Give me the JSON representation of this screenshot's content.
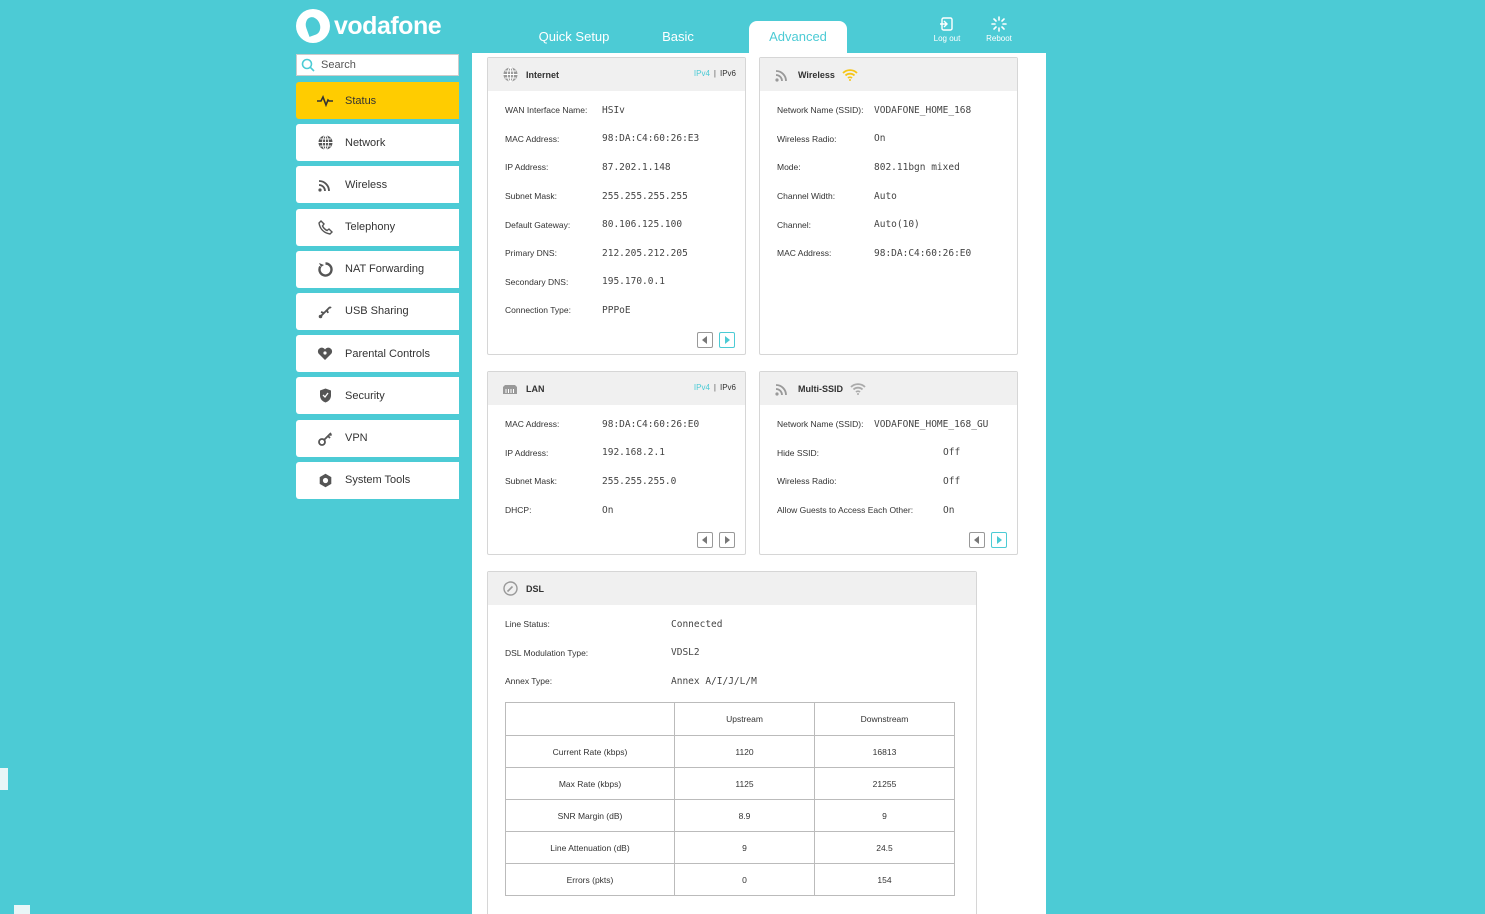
{
  "brand": {
    "name": "vodafone"
  },
  "tabs": [
    {
      "label": "Quick Setup"
    },
    {
      "label": "Basic"
    },
    {
      "label": "Advanced"
    }
  ],
  "actions": {
    "logout": "Log out",
    "reboot": "Reboot"
  },
  "search": {
    "placeholder": "Search"
  },
  "sidebar": {
    "items": [
      {
        "label": "Status",
        "icon": "pulse-icon",
        "active": true
      },
      {
        "label": "Network",
        "icon": "globe-icon"
      },
      {
        "label": "Wireless",
        "icon": "wifi-icon"
      },
      {
        "label": "Telephony",
        "icon": "phone-icon"
      },
      {
        "label": "NAT Forwarding",
        "icon": "nat-icon"
      },
      {
        "label": "USB Sharing",
        "icon": "usb-icon"
      },
      {
        "label": "Parental Controls",
        "icon": "heart-icon"
      },
      {
        "label": "Security",
        "icon": "shield-icon"
      },
      {
        "label": "VPN",
        "icon": "vpn-key-icon"
      },
      {
        "label": "System Tools",
        "icon": "gear-icon"
      }
    ]
  },
  "internet": {
    "title": "Internet",
    "ipv4": "IPv4",
    "sep": "|",
    "ipv6": "IPv6",
    "rows": [
      {
        "label": "WAN Interface Name:",
        "value": "HSIv"
      },
      {
        "label": "MAC Address:",
        "value": "98:DA:C4:60:26:E3"
      },
      {
        "label": "IP Address:",
        "value": "87.202.1.148"
      },
      {
        "label": "Subnet Mask:",
        "value": "255.255.255.255"
      },
      {
        "label": "Default Gateway:",
        "value": "80.106.125.100"
      },
      {
        "label": "Primary DNS:",
        "value": "212.205.212.205"
      },
      {
        "label": "Secondary DNS:",
        "value": "195.170.0.1"
      },
      {
        "label": "Connection Type:",
        "value": "PPPoE"
      }
    ]
  },
  "wireless": {
    "title": "Wireless",
    "rows": [
      {
        "label": "Network Name (SSID):",
        "value": "VODAFONE_HOME_168"
      },
      {
        "label": "Wireless Radio:",
        "value": "On"
      },
      {
        "label": "Mode:",
        "value": "802.11bgn mixed"
      },
      {
        "label": "Channel Width:",
        "value": "Auto"
      },
      {
        "label": "Channel:",
        "value": "Auto(10)"
      },
      {
        "label": "MAC Address:",
        "value": "98:DA:C4:60:26:E0"
      }
    ]
  },
  "lan": {
    "title": "LAN",
    "ipv4": "IPv4",
    "sep": "|",
    "ipv6": "IPv6",
    "rows": [
      {
        "label": "MAC Address:",
        "value": "98:DA:C4:60:26:E0"
      },
      {
        "label": "IP Address:",
        "value": "192.168.2.1"
      },
      {
        "label": "Subnet Mask:",
        "value": "255.255.255.0"
      },
      {
        "label": "DHCP:",
        "value": "On"
      }
    ]
  },
  "multissid": {
    "title": "Multi-SSID",
    "rows": [
      {
        "label": "Network Name (SSID):",
        "value": "VODAFONE_HOME_168_GU"
      },
      {
        "label": "Hide SSID:",
        "value": "Off"
      },
      {
        "label": "Wireless Radio:",
        "value": "Off"
      },
      {
        "label": "Allow Guests to Access Each Other:",
        "value": "On"
      }
    ]
  },
  "dsl": {
    "title": "DSL",
    "rows": [
      {
        "label": "Line Status:",
        "value": "Connected"
      },
      {
        "label": "DSL Modulation Type:",
        "value": "VDSL2"
      },
      {
        "label": "Annex Type:",
        "value": "Annex A/I/J/L/M"
      }
    ],
    "table": {
      "headers": [
        "",
        "Upstream",
        "Downstream"
      ],
      "rows": [
        [
          "Current Rate (kbps)",
          "1120",
          "16813"
        ],
        [
          "Max Rate (kbps)",
          "1125",
          "21255"
        ],
        [
          "SNR Margin (dB)",
          "8.9",
          "9"
        ],
        [
          "Line Attenuation (dB)",
          "9",
          "24.5"
        ],
        [
          "Errors (pkts)",
          "0",
          "154"
        ]
      ]
    }
  },
  "colors": {
    "accent": "#4ccbd5",
    "active": "#ffcc00",
    "wifi": "#f5c518"
  }
}
